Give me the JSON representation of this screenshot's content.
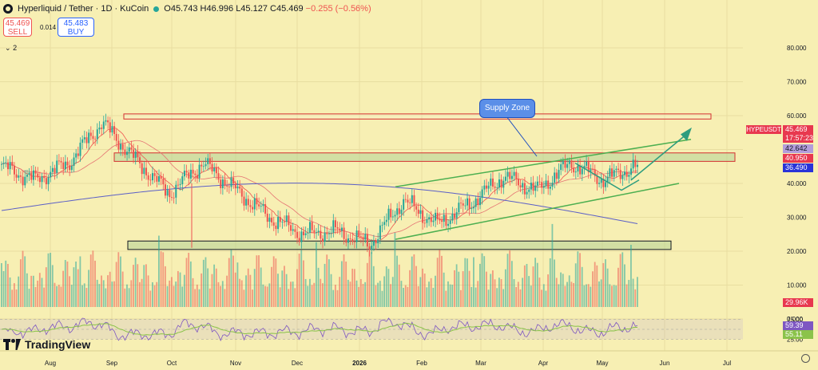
{
  "header": {
    "symbol_title": "Hyperliquid / Tether · 1D · KuCoin",
    "open": "O45.743",
    "high": "H46.996",
    "low": "L45.127",
    "close": "C45.469",
    "change": "−0.255 (−0.56%)"
  },
  "trade": {
    "sell_price": "45.469",
    "sell_label": "SELL",
    "spread": "0.014",
    "buy_price": "45.483",
    "buy_label": "BUY"
  },
  "indicators_toggle": "2",
  "logo_text": "TradingView",
  "annotation": {
    "supply_zone": "Supply Zone"
  },
  "price_tags": {
    "symbol": "HYPEUSDT",
    "last": "45.469",
    "countdown": "17:57:23",
    "ma_fast": "42.642",
    "ma_slow": "40.950",
    "ma_long": "36.490",
    "volume": "29.96K",
    "rsi": "59.39",
    "rsi_ma": "55.11"
  },
  "colors": {
    "background": "#f7efb3",
    "up": "#26a69a",
    "down": "#ef5350",
    "ma_fast": "#ef5350",
    "ma_long": "#5b5fc7",
    "channel": "#4caf50",
    "rsi": "#7e57c2",
    "rsi_ma": "#8bc34a"
  },
  "chart_data": {
    "type": "candlestick",
    "x_ticks": [
      "Aug",
      "Sep",
      "Oct",
      "Nov",
      "Dec",
      "2026",
      "Feb",
      "Mar",
      "Apr",
      "May",
      "Jun",
      "Jul"
    ],
    "price_axis_ticks": [
      "80.000",
      "70.000",
      "60.000",
      "50.000",
      "40.000",
      "30.000",
      "20.000",
      "10.000",
      "0.000"
    ],
    "rsi_axis_ticks": [
      "75.00",
      "25.00"
    ],
    "ylim": [
      0,
      80
    ],
    "monthly_path": [
      {
        "month": "Jul",
        "close": 45
      },
      {
        "month": "Aug",
        "close": 41
      },
      {
        "month": "Sep",
        "close": 46
      },
      {
        "month": "Sep",
        "close": 58
      },
      {
        "month": "Oct",
        "close": 47
      },
      {
        "month": "Oct",
        "close": 37
      },
      {
        "month": "Nov",
        "close": 46
      },
      {
        "month": "Nov",
        "close": 38
      },
      {
        "month": "Dec",
        "close": 30
      },
      {
        "month": "Dec",
        "close": 25
      },
      {
        "month": "2026",
        "close": 26
      },
      {
        "month": "2026",
        "close": 22
      },
      {
        "month": "Feb",
        "close": 35
      },
      {
        "month": "Feb",
        "close": 28
      },
      {
        "month": "Mar",
        "close": 34
      },
      {
        "month": "Mar",
        "close": 42
      },
      {
        "month": "Apr",
        "close": 38
      },
      {
        "month": "Apr",
        "close": 46
      },
      {
        "month": "May",
        "close": 41
      },
      {
        "month": "May",
        "close": 45.469
      }
    ],
    "zones": [
      {
        "name": "resistance",
        "low": 59,
        "high": 60.5
      },
      {
        "name": "supply",
        "low": 46.5,
        "high": 49
      },
      {
        "name": "demand",
        "low": 20.5,
        "high": 23
      }
    ],
    "last_price": 45.469,
    "volume_last": "29.96K",
    "rsi_last": 59.39,
    "rsi_ma_last": 55.11
  }
}
